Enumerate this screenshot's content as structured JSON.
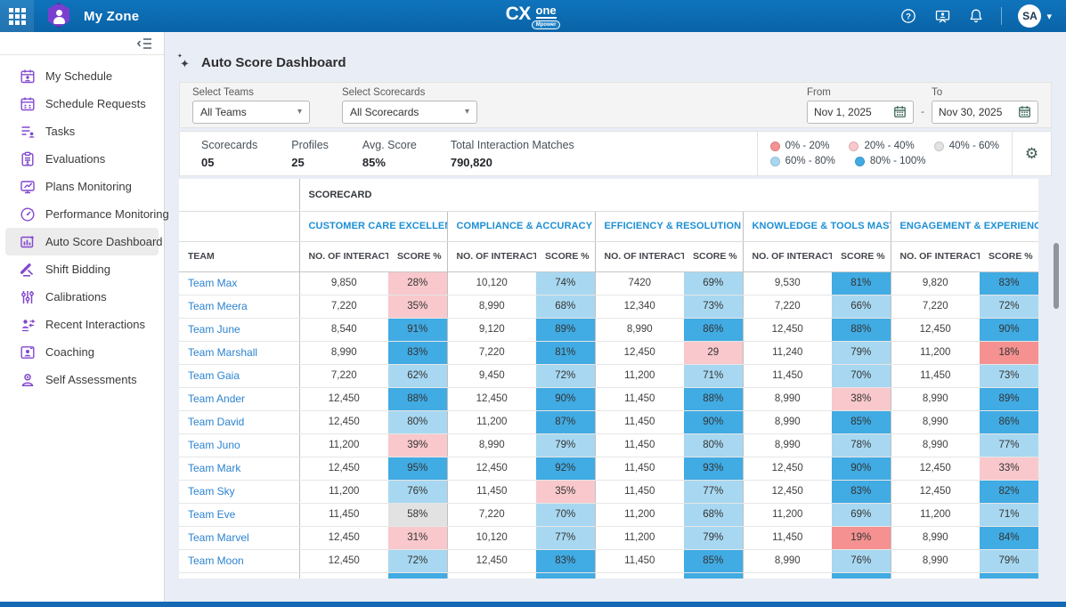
{
  "header": {
    "app_title": "My Zone",
    "logo": {
      "cx": "CX",
      "one": "one",
      "badge": "Mpower"
    },
    "avatar_initials": "SA"
  },
  "sidebar": {
    "items": [
      {
        "slug": "my-schedule",
        "icon": "calendar-user",
        "label": "My Schedule",
        "active": false
      },
      {
        "slug": "schedule-requests",
        "icon": "calendar-check",
        "label": "Schedule Requests",
        "active": false
      },
      {
        "slug": "tasks",
        "icon": "task-list",
        "label": "Tasks",
        "active": false
      },
      {
        "slug": "evaluations",
        "icon": "clipboard",
        "label": "Evaluations",
        "active": false
      },
      {
        "slug": "plans-monitoring",
        "icon": "monitor-chart",
        "label": "Plans Monitoring",
        "active": false
      },
      {
        "slug": "performance-monitoring",
        "icon": "gauge",
        "label": "Performance Monitoring",
        "active": false
      },
      {
        "slug": "auto-score-dashboard",
        "icon": "score-chart",
        "label": "Auto Score Dashboard",
        "active": true
      },
      {
        "slug": "shift-bidding",
        "icon": "gavel",
        "label": "Shift Bidding",
        "active": false
      },
      {
        "slug": "calibrations",
        "icon": "sliders",
        "label": "Calibrations",
        "active": false
      },
      {
        "slug": "recent-interactions",
        "icon": "person-arrows",
        "label": "Recent Interactions",
        "active": false
      },
      {
        "slug": "coaching",
        "icon": "coach",
        "label": "Coaching",
        "active": false
      },
      {
        "slug": "self-assessments",
        "icon": "person",
        "label": "Self Assessments",
        "active": false
      }
    ]
  },
  "page": {
    "title": "Auto Score Dashboard"
  },
  "filters": {
    "teams_label": "Select Teams",
    "teams_value": "All Teams",
    "scorecards_label": "Select Scorecards",
    "scorecards_value": "All Scorecards",
    "from_label": "From",
    "from_value": "Nov 1, 2025",
    "separator": "-",
    "to_label": "To",
    "to_value": "Nov 30, 2025"
  },
  "stats": [
    {
      "label": "Scorecards",
      "value": "05"
    },
    {
      "label": "Profiles",
      "value": "25"
    },
    {
      "label": "Avg. Score",
      "value": "85%"
    },
    {
      "label": "Total Interaction Matches",
      "value": "790,820"
    }
  ],
  "legend": {
    "row1": [
      {
        "label": "0% - 20%",
        "bucket": "red"
      },
      {
        "label": "20% - 40%",
        "bucket": "pink"
      },
      {
        "label": "40% - 60%",
        "bucket": "gray"
      }
    ],
    "row2": [
      {
        "label": "60% - 80%",
        "bucket": "lightblue"
      },
      {
        "label": "80% - 100%",
        "bucket": "blue"
      }
    ]
  },
  "colors": {
    "buckets": {
      "red": "#F59191",
      "pink": "#F8C8CC",
      "gray": "#E2E2E2",
      "lightblue": "#A8D8F1",
      "blue": "#41ABE3"
    },
    "accent_blue": "#1D8FD4",
    "topbar_blue": "#0C6DB4",
    "sidebar_icon_purple": "#8247CE"
  },
  "table": {
    "group_header": "SCORECARD",
    "team_header": "TEAM",
    "interactions_header": "NO. OF INTERACTI...",
    "score_header": "SCORE %",
    "scorecards": [
      "CUSTOMER CARE EXCELLENCE",
      "COMPLIANCE & ACCURACY",
      "EFFICIENCY & RESOLUTION",
      "KNOWLEDGE & TOOLS MASTERY...",
      "ENGAGEMENT & EXPERIENCE"
    ],
    "rows": [
      {
        "team": "Team Max",
        "cells": [
          [
            "9,850",
            "28%",
            "pink"
          ],
          [
            "10,120",
            "74%",
            "lightblue"
          ],
          [
            "7420",
            "69%",
            "lightblue"
          ],
          [
            "9,530",
            "81%",
            "blue"
          ],
          [
            "9,820",
            "83%",
            "blue"
          ]
        ]
      },
      {
        "team": "Team Meera",
        "cells": [
          [
            "7,220",
            "35%",
            "pink"
          ],
          [
            "8,990",
            "68%",
            "lightblue"
          ],
          [
            "12,340",
            "73%",
            "lightblue"
          ],
          [
            "7,220",
            "66%",
            "lightblue"
          ],
          [
            "7,220",
            "72%",
            "lightblue"
          ]
        ]
      },
      {
        "team": "Team June",
        "cells": [
          [
            "8,540",
            "91%",
            "blue"
          ],
          [
            "9,120",
            "89%",
            "blue"
          ],
          [
            "8,990",
            "86%",
            "blue"
          ],
          [
            "12,450",
            "88%",
            "blue"
          ],
          [
            "12,450",
            "90%",
            "blue"
          ]
        ]
      },
      {
        "team": "Team Marshall",
        "cells": [
          [
            "8,990",
            "83%",
            "blue"
          ],
          [
            "7,220",
            "81%",
            "blue"
          ],
          [
            "12,450",
            "29",
            "pink"
          ],
          [
            "11,240",
            "79%",
            "lightblue"
          ],
          [
            "11,200",
            "18%",
            "red"
          ]
        ]
      },
      {
        "team": "Team Gaia",
        "cells": [
          [
            "7,220",
            "62%",
            "lightblue"
          ],
          [
            "9,450",
            "72%",
            "lightblue"
          ],
          [
            "11,200",
            "71%",
            "lightblue"
          ],
          [
            "11,450",
            "70%",
            "lightblue"
          ],
          [
            "11,450",
            "73%",
            "lightblue"
          ]
        ]
      },
      {
        "team": "Team Ander",
        "cells": [
          [
            "12,450",
            "88%",
            "blue"
          ],
          [
            "12,450",
            "90%",
            "blue"
          ],
          [
            "11,450",
            "88%",
            "blue"
          ],
          [
            "8,990",
            "38%",
            "pink"
          ],
          [
            "8,990",
            "89%",
            "blue"
          ]
        ]
      },
      {
        "team": "Team David",
        "cells": [
          [
            "12,450",
            "80%",
            "lightblue"
          ],
          [
            "11,200",
            "87%",
            "blue"
          ],
          [
            "11,450",
            "90%",
            "blue"
          ],
          [
            "8,990",
            "85%",
            "blue"
          ],
          [
            "8,990",
            "86%",
            "blue"
          ]
        ]
      },
      {
        "team": "Team Juno",
        "cells": [
          [
            "11,200",
            "39%",
            "pink"
          ],
          [
            "8,990",
            "79%",
            "lightblue"
          ],
          [
            "11,450",
            "80%",
            "lightblue"
          ],
          [
            "8,990",
            "78%",
            "lightblue"
          ],
          [
            "8,990",
            "77%",
            "lightblue"
          ]
        ]
      },
      {
        "team": "Team Mark",
        "cells": [
          [
            "12,450",
            "95%",
            "blue"
          ],
          [
            "12,450",
            "92%",
            "blue"
          ],
          [
            "11,450",
            "93%",
            "blue"
          ],
          [
            "12,450",
            "90%",
            "blue"
          ],
          [
            "12,450",
            "33%",
            "pink"
          ]
        ]
      },
      {
        "team": "Team Sky",
        "cells": [
          [
            "11,200",
            "76%",
            "lightblue"
          ],
          [
            "11,450",
            "35%",
            "pink"
          ],
          [
            "11,450",
            "77%",
            "lightblue"
          ],
          [
            "12,450",
            "83%",
            "blue"
          ],
          [
            "12,450",
            "82%",
            "blue"
          ]
        ]
      },
      {
        "team": "Team Eve",
        "cells": [
          [
            "11,450",
            "58%",
            "gray"
          ],
          [
            "7,220",
            "70%",
            "lightblue"
          ],
          [
            "11,200",
            "68%",
            "lightblue"
          ],
          [
            "11,200",
            "69%",
            "lightblue"
          ],
          [
            "11,200",
            "71%",
            "lightblue"
          ]
        ]
      },
      {
        "team": "Team Marvel",
        "cells": [
          [
            "12,450",
            "31%",
            "pink"
          ],
          [
            "10,120",
            "77%",
            "lightblue"
          ],
          [
            "11,200",
            "79%",
            "lightblue"
          ],
          [
            "11,450",
            "19%",
            "red"
          ],
          [
            "8,990",
            "84%",
            "blue"
          ]
        ]
      },
      {
        "team": "Team Moon",
        "cells": [
          [
            "12,450",
            "72%",
            "lightblue"
          ],
          [
            "12,450",
            "83%",
            "blue"
          ],
          [
            "11,450",
            "85%",
            "blue"
          ],
          [
            "8,990",
            "76%",
            "lightblue"
          ],
          [
            "8,990",
            "79%",
            "lightblue"
          ]
        ]
      }
    ],
    "partial_row_buckets": [
      "blue",
      "blue",
      "blue",
      "blue",
      "blue"
    ]
  }
}
